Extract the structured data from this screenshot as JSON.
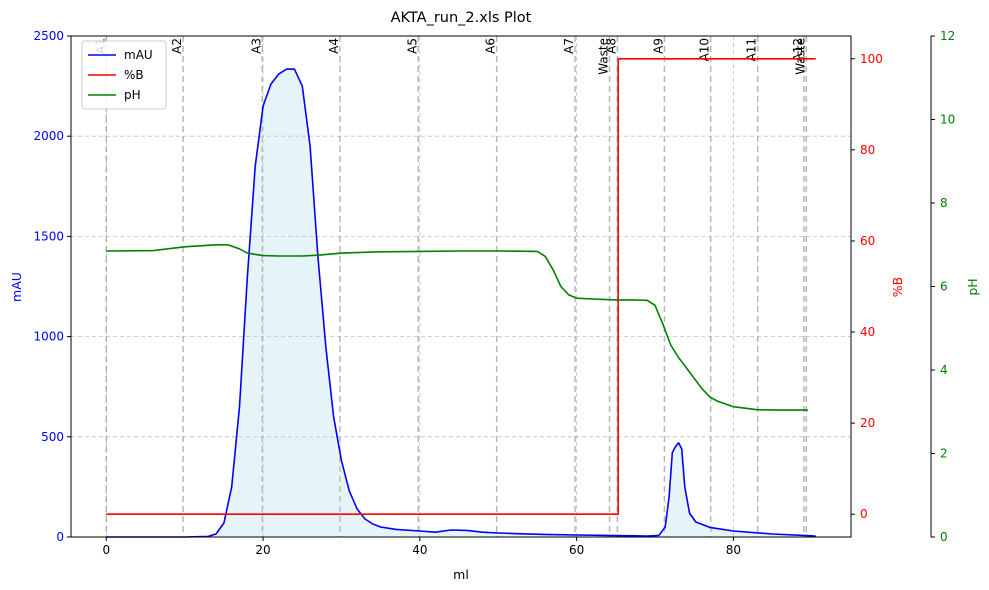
{
  "chart_data": {
    "type": "line",
    "title": "AKTA_run_2.xls Plot",
    "xlabel": "ml",
    "xlim": [
      -4.5,
      95
    ],
    "x_ticks": [
      0,
      20,
      40,
      60,
      80
    ],
    "y_axes": {
      "left": {
        "label": "mAU",
        "lim": [
          0,
          2500
        ],
        "ticks": [
          0,
          500,
          1000,
          1500,
          2000,
          2500
        ],
        "color": "#0000ff"
      },
      "right1": {
        "label": "%B",
        "lim": [
          -5,
          105
        ],
        "ticks": [
          0,
          20,
          40,
          60,
          80,
          100
        ],
        "color": "#ff0000"
      },
      "right2": {
        "label": "pH",
        "lim": [
          0,
          12
        ],
        "ticks": [
          0,
          2,
          4,
          6,
          8,
          10,
          12
        ],
        "color": "#008000"
      }
    },
    "grid": true,
    "legend_position": "top-left",
    "fractions": [
      {
        "label": "A1",
        "x": 0
      },
      {
        "label": "A2",
        "x": 9.8
      },
      {
        "label": "A3",
        "x": 19.9
      },
      {
        "label": "A4",
        "x": 29.8
      },
      {
        "label": "A5",
        "x": 39.8
      },
      {
        "label": "A6",
        "x": 49.8
      },
      {
        "label": "A7",
        "x": 59.8
      },
      {
        "label": "Waste",
        "x": 64.2
      },
      {
        "label": "A8",
        "x": 65.2
      },
      {
        "label": "A9",
        "x": 71.2
      },
      {
        "label": "A10",
        "x": 77.1
      },
      {
        "label": "A11",
        "x": 83.1
      },
      {
        "label": "A12",
        "x": 89.0
      },
      {
        "label": "Waste",
        "x": 89.3
      }
    ],
    "series": [
      {
        "name": "mAU",
        "axis": "left",
        "color": "#0000ff",
        "fill": "#add8e6",
        "points": [
          [
            0,
            0
          ],
          [
            5,
            0
          ],
          [
            10,
            0
          ],
          [
            13,
            3
          ],
          [
            14,
            15
          ],
          [
            15,
            70
          ],
          [
            16,
            250
          ],
          [
            17,
            650
          ],
          [
            18,
            1300
          ],
          [
            19,
            1850
          ],
          [
            20,
            2150
          ],
          [
            21,
            2260
          ],
          [
            22,
            2310
          ],
          [
            23,
            2335
          ],
          [
            24,
            2335
          ],
          [
            25,
            2250
          ],
          [
            26,
            1950
          ],
          [
            27,
            1400
          ],
          [
            28,
            950
          ],
          [
            29,
            600
          ],
          [
            30,
            380
          ],
          [
            31,
            230
          ],
          [
            32,
            140
          ],
          [
            33,
            90
          ],
          [
            34,
            65
          ],
          [
            35,
            50
          ],
          [
            37,
            38
          ],
          [
            40,
            30
          ],
          [
            42,
            24
          ],
          [
            43,
            30
          ],
          [
            44,
            35
          ],
          [
            46,
            33
          ],
          [
            48,
            24
          ],
          [
            50,
            20
          ],
          [
            53,
            16
          ],
          [
            56,
            13
          ],
          [
            60,
            10
          ],
          [
            65,
            7
          ],
          [
            69,
            5
          ],
          [
            70.5,
            8
          ],
          [
            71.3,
            50
          ],
          [
            71.8,
            200
          ],
          [
            72.2,
            420
          ],
          [
            72.6,
            450
          ],
          [
            73.0,
            470
          ],
          [
            73.4,
            440
          ],
          [
            73.8,
            250
          ],
          [
            74.4,
            120
          ],
          [
            75.2,
            75
          ],
          [
            77,
            48
          ],
          [
            80,
            30
          ],
          [
            85,
            15
          ],
          [
            90,
            6
          ],
          [
            90.5,
            4
          ]
        ]
      },
      {
        "name": "%B",
        "axis": "right1",
        "color": "#ff0000",
        "points": [
          [
            0,
            0
          ],
          [
            65.3,
            0
          ],
          [
            65.3,
            100
          ],
          [
            90.5,
            100
          ]
        ]
      },
      {
        "name": "pH",
        "axis": "right2",
        "color": "#008000",
        "points": [
          [
            0,
            6.85
          ],
          [
            6,
            6.86
          ],
          [
            10,
            6.95
          ],
          [
            14,
            7.0
          ],
          [
            15.5,
            7.0
          ],
          [
            17,
            6.9
          ],
          [
            18,
            6.8
          ],
          [
            20,
            6.74
          ],
          [
            22,
            6.73
          ],
          [
            25,
            6.73
          ],
          [
            27,
            6.75
          ],
          [
            30,
            6.8
          ],
          [
            35,
            6.83
          ],
          [
            40,
            6.84
          ],
          [
            45,
            6.85
          ],
          [
            50,
            6.85
          ],
          [
            55,
            6.84
          ],
          [
            56,
            6.72
          ],
          [
            57,
            6.4
          ],
          [
            58,
            6.0
          ],
          [
            59,
            5.8
          ],
          [
            60,
            5.72
          ],
          [
            62,
            5.7
          ],
          [
            65,
            5.68
          ],
          [
            67,
            5.68
          ],
          [
            69,
            5.67
          ],
          [
            70,
            5.55
          ],
          [
            71,
            5.1
          ],
          [
            72,
            4.6
          ],
          [
            73,
            4.3
          ],
          [
            74,
            4.05
          ],
          [
            75,
            3.8
          ],
          [
            76,
            3.55
          ],
          [
            77,
            3.35
          ],
          [
            78,
            3.25
          ],
          [
            80,
            3.12
          ],
          [
            83,
            3.05
          ],
          [
            86,
            3.04
          ],
          [
            89.5,
            3.04
          ]
        ]
      }
    ]
  }
}
